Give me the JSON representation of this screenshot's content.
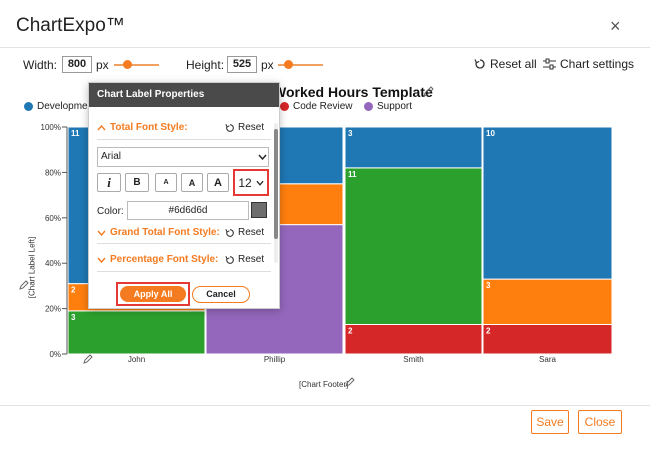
{
  "app": {
    "title": "ChartExpo™",
    "close": "×"
  },
  "toolbar": {
    "width_label": "Width:",
    "width_value": "800",
    "width_unit": "px",
    "height_label": "Height:",
    "height_value": "525",
    "height_unit": "px",
    "reset_all": "Reset all",
    "chart_settings": "Chart settings"
  },
  "chart": {
    "title": "Worked Hours Template",
    "legend": [
      {
        "label": "Development",
        "color": "#1f77b4"
      },
      {
        "label": "Code Review",
        "color": "#d62728"
      },
      {
        "label": "Support",
        "color": "#9467bd"
      }
    ],
    "y_axis_label": "[Chart Label Left]",
    "footer_label": "[Chart Footer]"
  },
  "chart_data": {
    "type": "bar",
    "stacked": "percent",
    "categories": [
      "John",
      "Phillip",
      "Smith",
      "Sara"
    ],
    "yticks": [
      "0%",
      "20%",
      "40%",
      "60%",
      "80%",
      "100%"
    ],
    "series_colors": [
      "#2ca02c",
      "#ff7f0e",
      "#9467bd",
      "#d62728",
      "#1f77b4"
    ],
    "columns": [
      {
        "name": "John",
        "segments": [
          {
            "color": "#2ca02c",
            "pct": 19,
            "label": "3"
          },
          {
            "color": "#ff7f0e",
            "pct": 12,
            "label": "2"
          },
          {
            "color": "#1f77b4",
            "pct": 69,
            "label": "11"
          }
        ]
      },
      {
        "name": "Phillip",
        "segments": [
          {
            "color": "#9467bd",
            "pct": 57,
            "label": ""
          },
          {
            "color": "#ff7f0e",
            "pct": 18,
            "label": ""
          },
          {
            "color": "#1f77b4",
            "pct": 25,
            "label": ""
          }
        ]
      },
      {
        "name": "Smith",
        "segments": [
          {
            "color": "#d62728",
            "pct": 13,
            "label": "2"
          },
          {
            "color": "#2ca02c",
            "pct": 69,
            "label": "11"
          },
          {
            "color": "#1f77b4",
            "pct": 18,
            "label": "3"
          }
        ]
      },
      {
        "name": "Sara",
        "segments": [
          {
            "color": "#d62728",
            "pct": 13,
            "label": "2"
          },
          {
            "color": "#ff7f0e",
            "pct": 20,
            "label": "3"
          },
          {
            "color": "#1f77b4",
            "pct": 67,
            "label": "10"
          }
        ]
      }
    ]
  },
  "panel": {
    "header": "Chart Label Properties",
    "total_font_title": "Total Font Style:",
    "reset": "Reset",
    "font_family": "Arial",
    "italic_glyph": "i",
    "bold_glyph": "B",
    "size_small": "A",
    "size_medium": "A",
    "size_large": "A",
    "font_size": "12",
    "color_label": "Color:",
    "color_value": "#6d6d6d",
    "grand_total_title": "Grand Total Font Style:",
    "percentage_title": "Percentage Font Style:",
    "apply_all": "Apply All",
    "cancel": "Cancel"
  },
  "footer": {
    "save": "Save",
    "close": "Close"
  }
}
